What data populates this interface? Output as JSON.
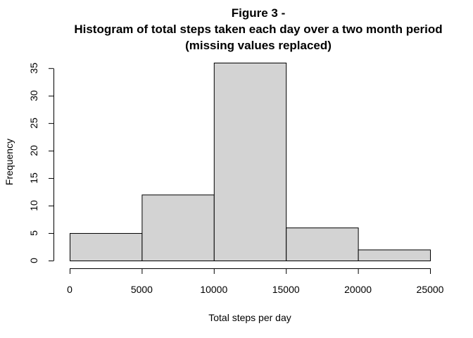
{
  "chart_data": {
    "type": "bar",
    "title_lines": [
      "Figure 3 -",
      "Histogram of total steps taken each day over a two month period",
      "(missing values replaced)"
    ],
    "xlabel": "Total steps per day",
    "ylabel": "Frequency",
    "bins": [
      {
        "from": 0,
        "to": 5000,
        "count": 5
      },
      {
        "from": 5000,
        "to": 10000,
        "count": 12
      },
      {
        "from": 10000,
        "to": 15000,
        "count": 36
      },
      {
        "from": 15000,
        "to": 20000,
        "count": 6
      },
      {
        "from": 20000,
        "to": 25000,
        "count": 2
      }
    ],
    "xlim": [
      0,
      25000
    ],
    "ylim": [
      0,
      35
    ],
    "x_ticks": [
      "0",
      "5000",
      "10000",
      "15000",
      "20000",
      "25000"
    ],
    "y_ticks": [
      "0",
      "5",
      "10",
      "15",
      "20",
      "25",
      "30",
      "35"
    ],
    "bar_color": "#d3d3d3",
    "grid": false,
    "legend": "none"
  }
}
